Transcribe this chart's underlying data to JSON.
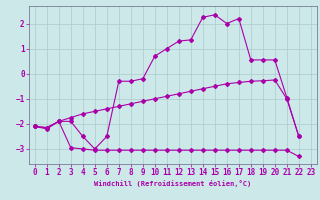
{
  "xlabel": "Windchill (Refroidissement éolien,°C)",
  "background_color": "#cce8e8",
  "grid_color": "#aacccc",
  "line_color": "#aa00aa",
  "xlim": [
    -0.5,
    23.5
  ],
  "ylim": [
    -3.6,
    2.7
  ],
  "xticks": [
    0,
    1,
    2,
    3,
    4,
    5,
    6,
    7,
    8,
    9,
    10,
    11,
    12,
    13,
    14,
    15,
    16,
    17,
    18,
    19,
    20,
    21,
    22,
    23
  ],
  "yticks": [
    -3,
    -2,
    -1,
    0,
    1,
    2
  ],
  "series1": [
    [
      0,
      -2.1
    ],
    [
      1,
      -2.2
    ],
    [
      2,
      -1.9
    ],
    [
      3,
      -1.9
    ],
    [
      4,
      -2.5
    ],
    [
      5,
      -3.0
    ],
    [
      6,
      -2.5
    ],
    [
      7,
      -0.3
    ],
    [
      8,
      -0.3
    ],
    [
      9,
      -0.2
    ],
    [
      10,
      0.7
    ],
    [
      11,
      1.0
    ],
    [
      12,
      1.3
    ],
    [
      13,
      1.35
    ],
    [
      14,
      2.25
    ],
    [
      15,
      2.35
    ],
    [
      16,
      2.0
    ],
    [
      17,
      2.2
    ],
    [
      18,
      0.55
    ],
    [
      19,
      0.55
    ],
    [
      20,
      0.55
    ],
    [
      21,
      -0.95
    ],
    [
      22,
      -2.5
    ]
  ],
  "series2": [
    [
      0,
      -2.1
    ],
    [
      1,
      -2.15
    ],
    [
      2,
      -1.9
    ],
    [
      3,
      -2.95
    ],
    [
      4,
      -3.0
    ],
    [
      5,
      -3.05
    ],
    [
      6,
      -3.05
    ],
    [
      7,
      -3.05
    ],
    [
      8,
      -3.05
    ],
    [
      9,
      -3.05
    ],
    [
      10,
      -3.05
    ],
    [
      11,
      -3.05
    ],
    [
      12,
      -3.05
    ],
    [
      13,
      -3.05
    ],
    [
      14,
      -3.05
    ],
    [
      15,
      -3.05
    ],
    [
      16,
      -3.05
    ],
    [
      17,
      -3.05
    ],
    [
      18,
      -3.05
    ],
    [
      19,
      -3.05
    ],
    [
      20,
      -3.05
    ],
    [
      21,
      -3.05
    ],
    [
      22,
      -3.3
    ]
  ],
  "series3": [
    [
      0,
      -2.1
    ],
    [
      1,
      -2.15
    ],
    [
      2,
      -1.9
    ],
    [
      3,
      -1.75
    ],
    [
      4,
      -1.6
    ],
    [
      5,
      -1.5
    ],
    [
      6,
      -1.4
    ],
    [
      7,
      -1.3
    ],
    [
      8,
      -1.2
    ],
    [
      9,
      -1.1
    ],
    [
      10,
      -1.0
    ],
    [
      11,
      -0.9
    ],
    [
      12,
      -0.8
    ],
    [
      13,
      -0.7
    ],
    [
      14,
      -0.6
    ],
    [
      15,
      -0.5
    ],
    [
      16,
      -0.4
    ],
    [
      17,
      -0.35
    ],
    [
      18,
      -0.3
    ],
    [
      19,
      -0.28
    ],
    [
      20,
      -0.25
    ],
    [
      21,
      -1.0
    ],
    [
      22,
      -2.5
    ]
  ]
}
